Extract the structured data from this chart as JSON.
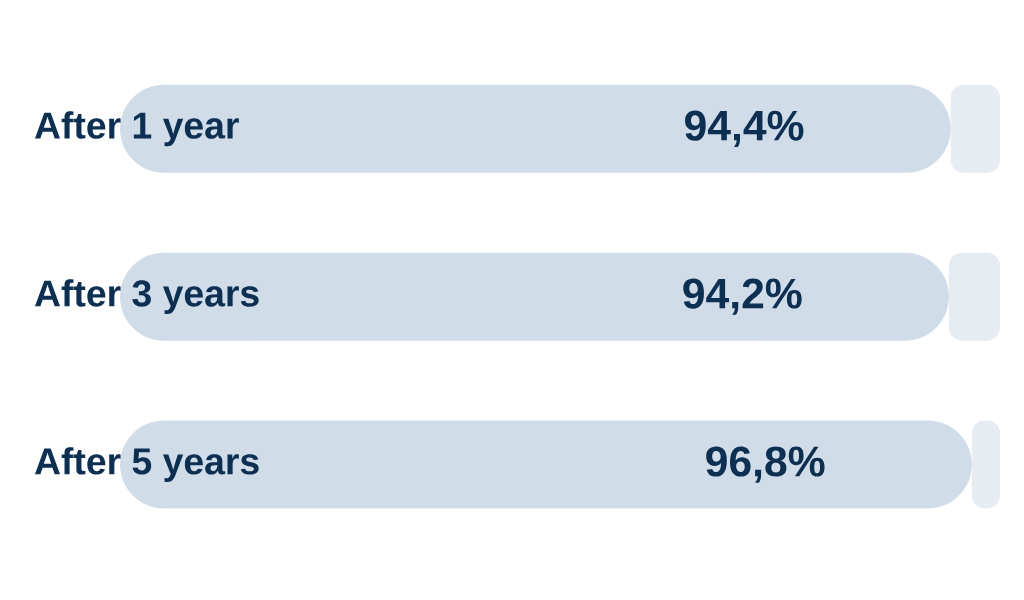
{
  "chart_data": {
    "type": "bar",
    "orientation": "horizontal",
    "stacked": true,
    "categories": [
      "After 1 year",
      "After 3 years",
      "After 5 years"
    ],
    "xlim": [
      0,
      100
    ],
    "tick_labels": "y",
    "series": [
      {
        "color": "#d0dde9",
        "values": [
          94.4,
          94.2,
          96.8
        ],
        "value_labels": [
          "94,4%",
          "94,2%",
          "96,8%"
        ]
      },
      {
        "color": "#e6ecf2",
        "values": [
          5.6,
          5.8,
          3.2
        ]
      }
    ]
  }
}
